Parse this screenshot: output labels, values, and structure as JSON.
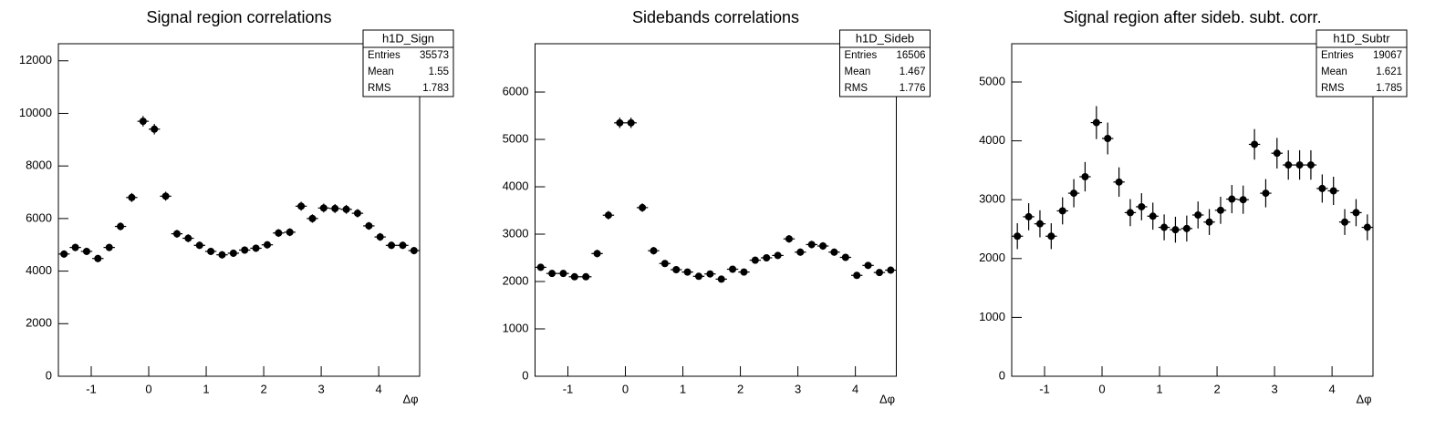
{
  "chart_data": [
    {
      "type": "errorbar",
      "title": "Signal region correlations",
      "x_label": "Δφ",
      "color": "#000000",
      "x": [
        -1.473,
        -1.276,
        -1.08,
        -0.884,
        -0.687,
        -0.491,
        -0.295,
        -0.098,
        0.098,
        0.295,
        0.491,
        0.687,
        0.884,
        1.08,
        1.276,
        1.473,
        1.669,
        1.865,
        2.062,
        2.258,
        2.454,
        2.651,
        2.847,
        3.043,
        3.24,
        3.436,
        3.632,
        3.829,
        4.025,
        4.221,
        4.418,
        4.614
      ],
      "values": [
        4650,
        4900,
        4750,
        4480,
        4900,
        5700,
        6800,
        9700,
        9400,
        6850,
        5420,
        5250,
        4980,
        4750,
        4620,
        4680,
        4800,
        4870,
        5000,
        5450,
        5480,
        6470,
        6000,
        6400,
        6380,
        6350,
        6200,
        5720,
        5300,
        4980,
        4980,
        4780
      ],
      "errors": [
        140,
        140,
        140,
        140,
        140,
        150,
        170,
        200,
        200,
        170,
        150,
        150,
        140,
        140,
        140,
        140,
        140,
        140,
        140,
        150,
        150,
        170,
        160,
        170,
        170,
        170,
        160,
        150,
        150,
        140,
        140,
        140
      ],
      "xlim": [
        -1.571,
        4.712
      ],
      "ylim": [
        0,
        12650
      ],
      "xticks": [
        -1,
        0,
        1,
        2,
        3,
        4
      ],
      "yticks": [
        0,
        2000,
        4000,
        6000,
        8000,
        10000,
        12000
      ],
      "stats": {
        "title": "h1D_Sign",
        "rows": [
          {
            "label": "Entries",
            "value": 35573
          },
          {
            "label": "Mean",
            "value": 1.55
          },
          {
            "label": "RMS",
            "value": 1.783
          }
        ]
      }
    },
    {
      "type": "errorbar",
      "title": "Sidebands correlations",
      "x_label": "Δφ",
      "color": "#000000",
      "x": [
        -1.473,
        -1.276,
        -1.08,
        -0.884,
        -0.687,
        -0.491,
        -0.295,
        -0.098,
        0.098,
        0.295,
        0.491,
        0.687,
        0.884,
        1.08,
        1.276,
        1.473,
        1.669,
        1.865,
        2.062,
        2.258,
        2.454,
        2.651,
        2.847,
        3.043,
        3.24,
        3.436,
        3.632,
        3.829,
        4.025,
        4.221,
        4.418,
        4.614
      ],
      "values": [
        2300,
        2170,
        2170,
        2100,
        2100,
        2590,
        3400,
        5350,
        5350,
        3560,
        2650,
        2380,
        2250,
        2200,
        2110,
        2160,
        2050,
        2260,
        2200,
        2450,
        2500,
        2550,
        2900,
        2620,
        2780,
        2750,
        2620,
        2510,
        2130,
        2340,
        2190,
        2240
      ],
      "errors": [
        70,
        70,
        70,
        70,
        70,
        80,
        90,
        110,
        110,
        90,
        80,
        70,
        70,
        70,
        70,
        70,
        70,
        70,
        70,
        75,
        75,
        75,
        80,
        75,
        80,
        80,
        75,
        75,
        70,
        70,
        70,
        70
      ],
      "xlim": [
        -1.571,
        4.712
      ],
      "ylim": [
        0,
        7020
      ],
      "xticks": [
        -1,
        0,
        1,
        2,
        3,
        4
      ],
      "yticks": [
        0,
        1000,
        2000,
        3000,
        4000,
        5000,
        6000
      ],
      "stats": {
        "title": "h1D_Sideb",
        "rows": [
          {
            "label": "Entries",
            "value": 16506
          },
          {
            "label": "Mean",
            "value": 1.467
          },
          {
            "label": "RMS",
            "value": 1.776
          }
        ]
      }
    },
    {
      "type": "errorbar",
      "title": "Signal region after sideb. subt. corr.",
      "x_label": "Δφ",
      "color": "#000000",
      "x": [
        -1.473,
        -1.276,
        -1.08,
        -0.884,
        -0.687,
        -0.491,
        -0.295,
        -0.098,
        0.098,
        0.295,
        0.491,
        0.687,
        0.884,
        1.08,
        1.276,
        1.473,
        1.669,
        1.865,
        2.062,
        2.258,
        2.454,
        2.651,
        2.847,
        3.043,
        3.24,
        3.436,
        3.632,
        3.829,
        4.025,
        4.221,
        4.418,
        4.614
      ],
      "values": [
        2380,
        2710,
        2590,
        2380,
        2810,
        3110,
        3390,
        4310,
        4040,
        3300,
        2780,
        2880,
        2720,
        2530,
        2490,
        2510,
        2740,
        2620,
        2820,
        3010,
        3000,
        3940,
        3110,
        3790,
        3590,
        3590,
        3590,
        3190,
        3150,
        2620,
        2780,
        2530
      ],
      "errors": [
        220,
        230,
        230,
        220,
        230,
        240,
        250,
        280,
        270,
        250,
        230,
        230,
        230,
        220,
        220,
        220,
        230,
        220,
        230,
        240,
        240,
        260,
        240,
        260,
        250,
        250,
        250,
        240,
        240,
        220,
        230,
        220
      ],
      "xlim": [
        -1.571,
        4.712
      ],
      "ylim": [
        0,
        5650
      ],
      "xticks": [
        -1,
        0,
        1,
        2,
        3,
        4
      ],
      "yticks": [
        0,
        1000,
        2000,
        3000,
        4000,
        5000
      ],
      "stats": {
        "title": "h1D_Subtr",
        "rows": [
          {
            "label": "Entries",
            "value": 19067
          },
          {
            "label": "Mean",
            "value": 1.621
          },
          {
            "label": "RMS",
            "value": 1.785
          }
        ]
      }
    }
  ]
}
